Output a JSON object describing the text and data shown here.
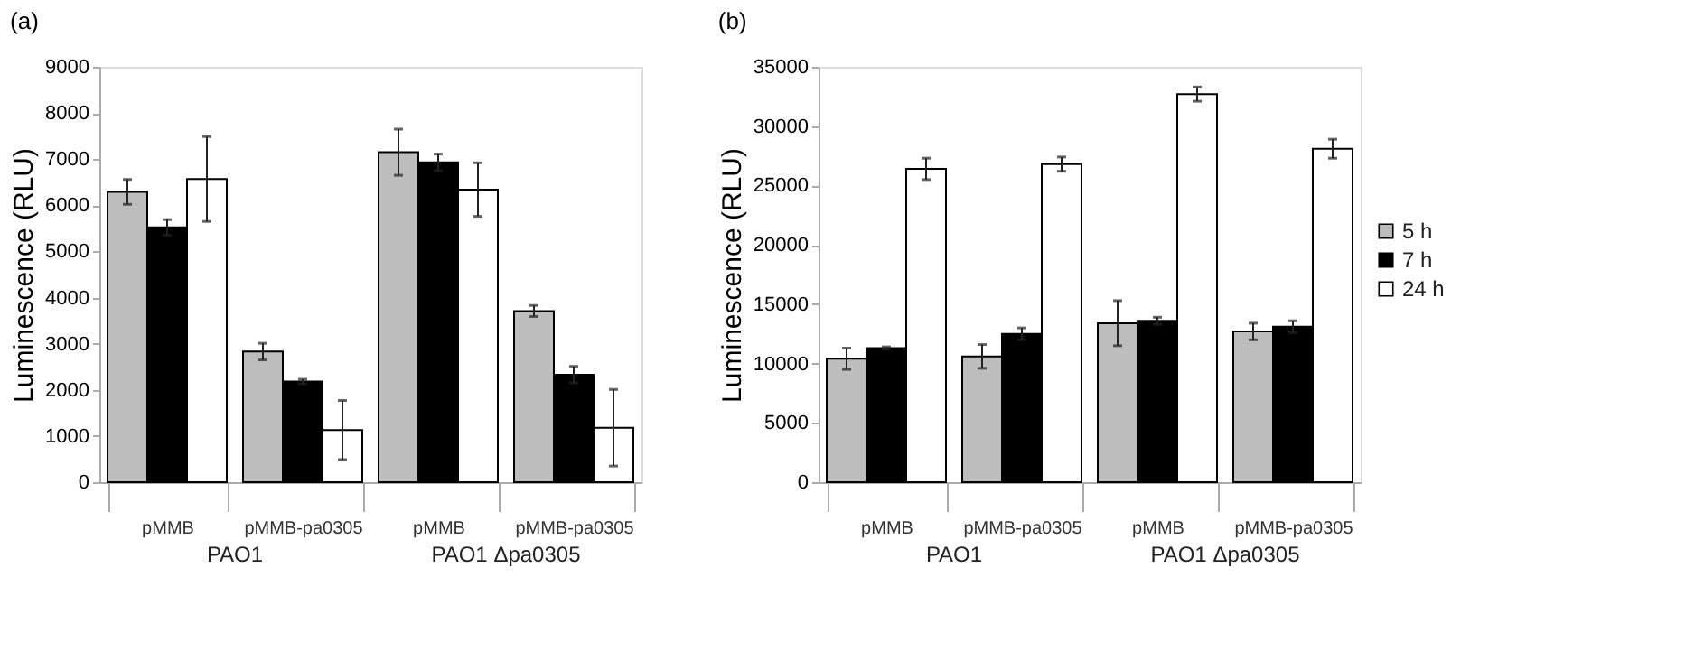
{
  "chart_data": [
    {
      "type": "bar",
      "title": "(a)",
      "ylabel": "Luminescence (RLU)",
      "categories": [
        "pMMB",
        "pMMB-pa0305",
        "pMMB",
        "pMMB-pa0305"
      ],
      "annotations": [
        "PAO1",
        "PAO1 Δpa0305"
      ],
      "ylim": [
        0,
        9000
      ],
      "yticks": [
        0,
        1000,
        2000,
        3000,
        4000,
        5000,
        6000,
        7000,
        8000,
        9000
      ],
      "grid": false,
      "legend": false,
      "series": [
        {
          "color": "#bdbdbd",
          "values": [
            6290,
            2830,
            7150,
            3710
          ],
          "errors": [
            270,
            180,
            500,
            120
          ]
        },
        {
          "color": "#000000",
          "values": [
            5520,
            2180,
            6930,
            2330
          ],
          "errors": [
            170,
            50,
            180,
            180
          ]
        },
        {
          "color": "#ffffff",
          "values": [
            6570,
            1130,
            6340,
            1180
          ],
          "errors": [
            920,
            640,
            580,
            830
          ]
        }
      ]
    },
    {
      "type": "bar",
      "title": "(b)",
      "ylabel": "Luminescence (RLU)",
      "categories": [
        "pMMB",
        "pMMB-pa0305",
        "pMMB",
        "pMMB-pa0305"
      ],
      "annotations": [
        "PAO1",
        "PAO1 Δpa0305"
      ],
      "ylim": [
        0,
        35000
      ],
      "yticks": [
        0,
        5000,
        10000,
        15000,
        20000,
        25000,
        30000,
        35000
      ],
      "grid": false,
      "legend": "right",
      "series": [
        {
          "name": "5 h",
          "color": "#bdbdbd",
          "values": [
            10400,
            10600,
            13400,
            12700
          ],
          "errors": [
            900,
            1000,
            1900,
            700
          ]
        },
        {
          "name": "7 h",
          "color": "#000000",
          "values": [
            11300,
            12500,
            13600,
            13100
          ],
          "errors": [
            100,
            500,
            300,
            500
          ]
        },
        {
          "name": "24 h",
          "color": "#ffffff",
          "values": [
            26400,
            26800,
            32700,
            28100
          ],
          "errors": [
            900,
            600,
            600,
            800
          ]
        }
      ]
    }
  ]
}
